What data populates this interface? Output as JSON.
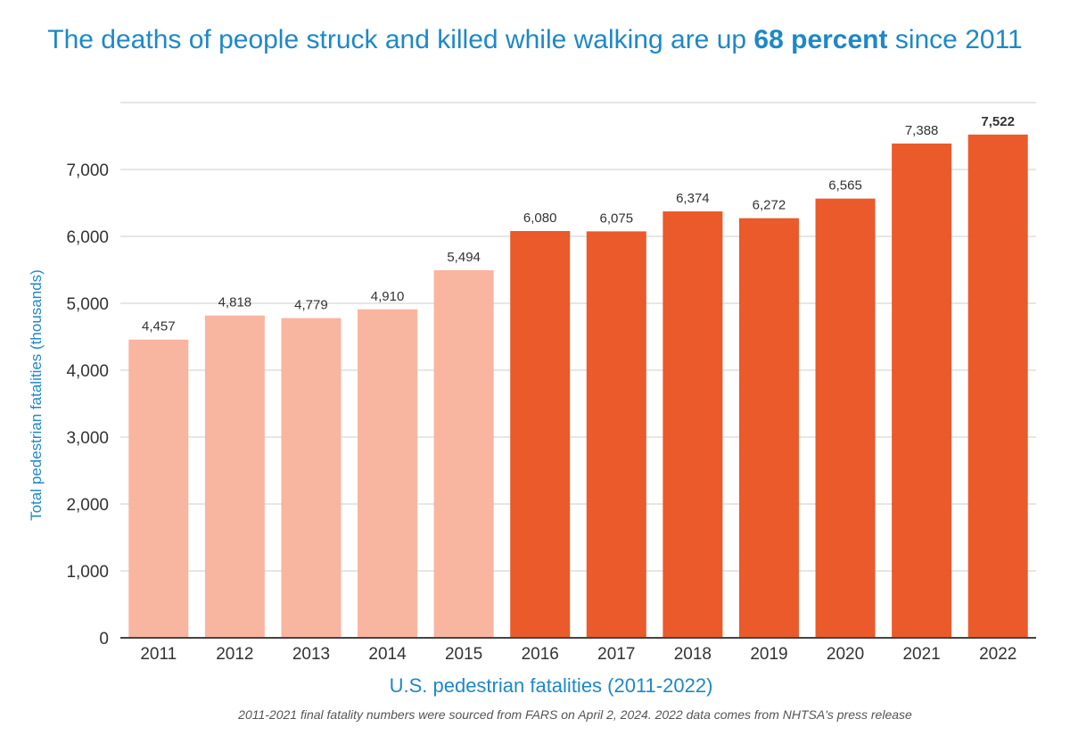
{
  "title": {
    "prefix": "The deaths of people struck and killed while walking are up ",
    "highlight": "68 percent",
    "suffix": " since 2011"
  },
  "footnote": "2011-2021 final fatality numbers were sourced from FARS on April 2, 2024.  2022 data comes from NHTSA's press release",
  "chart_data": {
    "type": "bar",
    "title": "The deaths of people struck and killed while walking are up 68 percent since 2011",
    "xlabel": "U.S. pedestrian fatalities (2011-2022)",
    "ylabel": "Total pedestrian fatalities (thousands)",
    "ylim": [
      0,
      8000
    ],
    "yticks": [
      0,
      1000,
      2000,
      3000,
      4000,
      5000,
      6000,
      7000
    ],
    "ytick_labels": [
      "0",
      "1,000",
      "2,000",
      "3,000",
      "4,000",
      "5,000",
      "6,000",
      "7,000"
    ],
    "grid": true,
    "categories": [
      "2011",
      "2012",
      "2013",
      "2014",
      "2015",
      "2016",
      "2017",
      "2018",
      "2019",
      "2020",
      "2021",
      "2022"
    ],
    "values": [
      4457,
      4818,
      4779,
      4910,
      5494,
      6080,
      6075,
      6374,
      6272,
      6565,
      7388,
      7522
    ],
    "value_labels": [
      "4,457",
      "4,818",
      "4,779",
      "4,910",
      "5,494",
      "6,080",
      "6,075",
      "6,374",
      "6,272",
      "6,565",
      "7,388",
      "7,522"
    ],
    "colors": {
      "early": "#f8b5a0",
      "recent": "#ea5a2b",
      "accent": "#1e88c8",
      "grid": "#cccccc",
      "axis": "#444444"
    },
    "highlight_from": "2016"
  }
}
